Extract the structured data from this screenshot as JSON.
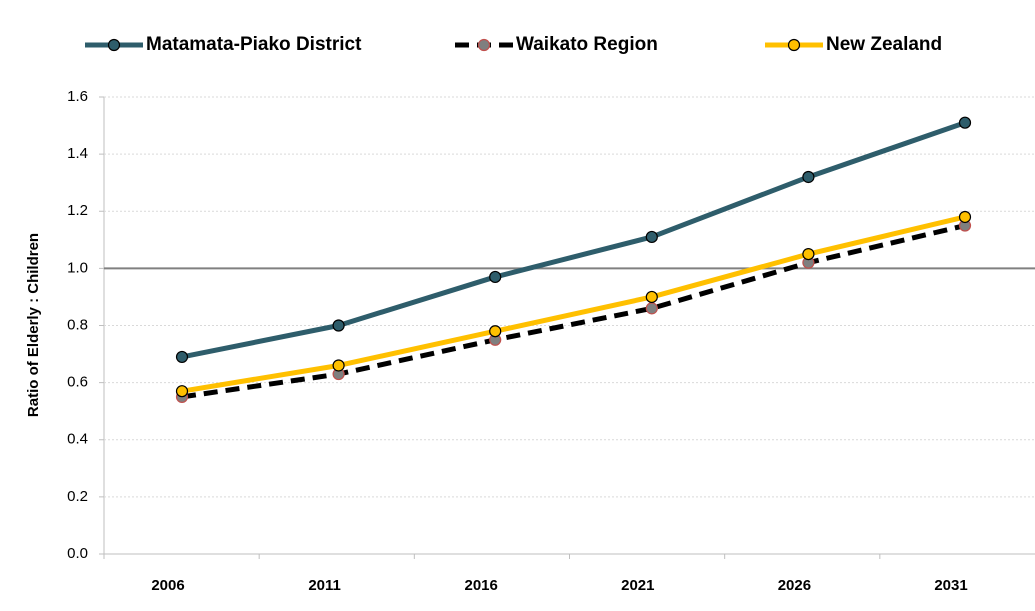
{
  "chart_data": {
    "type": "line",
    "y_label": "Ratio of Elderly : Children",
    "categories": [
      "2006",
      "2011",
      "2016",
      "2021",
      "2026",
      "2031"
    ],
    "series": [
      {
        "name": "Matamata-Piako District",
        "color": "#2e5d6b",
        "marker_color": "#2e5d6b",
        "dash": false,
        "values": [
          0.69,
          0.8,
          0.97,
          1.11,
          1.32,
          1.51
        ]
      },
      {
        "name": "Waikato Region",
        "color": "#000000",
        "marker_color": "#7f7f7f",
        "dash": true,
        "values": [
          0.55,
          0.63,
          0.75,
          0.86,
          1.02,
          1.15
        ]
      },
      {
        "name": "New Zealand",
        "color": "#ffc000",
        "marker_color": "#ffc000",
        "dash": false,
        "values": [
          0.57,
          0.66,
          0.78,
          0.9,
          1.05,
          1.18
        ]
      }
    ],
    "ylim": [
      0,
      1.6
    ],
    "yticks": [
      {
        "value": 0,
        "label": "0.0"
      },
      0.2,
      0.4,
      0.6,
      0.8,
      {
        "value": 1,
        "label": "1.0"
      },
      1.2,
      1.4,
      1.6
    ],
    "reference_line": 1,
    "grid": true,
    "legend": "top"
  }
}
